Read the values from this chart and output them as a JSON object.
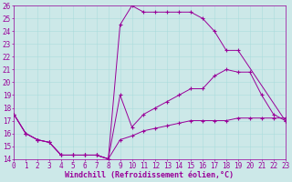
{
  "xlabel": "Windchill (Refroidissement éolien,°C)",
  "xlim": [
    0,
    23
  ],
  "ylim": [
    14,
    26
  ],
  "xticks": [
    0,
    1,
    2,
    3,
    4,
    5,
    6,
    7,
    8,
    9,
    10,
    11,
    12,
    13,
    14,
    15,
    16,
    17,
    18,
    19,
    20,
    21,
    22,
    23
  ],
  "yticks": [
    14,
    15,
    16,
    17,
    18,
    19,
    20,
    21,
    22,
    23,
    24,
    25,
    26
  ],
  "bg_color": "#cce8e8",
  "line_color": "#990099",
  "grid_color": "#aadddd",
  "curve1_x": [
    0,
    1,
    2,
    3,
    4,
    5,
    6,
    7,
    8,
    9,
    10,
    11,
    12,
    13,
    14,
    15,
    16,
    17,
    18,
    19,
    23
  ],
  "curve1_y": [
    17.5,
    16.0,
    15.5,
    15.3,
    14.3,
    14.3,
    14.3,
    14.3,
    14.0,
    24.5,
    26.0,
    25.5,
    25.5,
    25.5,
    25.5,
    25.5,
    25.0,
    24.0,
    22.5,
    22.5,
    17.0
  ],
  "curve2_x": [
    0,
    1,
    2,
    3,
    4,
    5,
    6,
    7,
    8,
    9,
    10,
    11,
    12,
    13,
    14,
    15,
    16,
    17,
    18,
    19,
    20,
    21,
    22,
    23
  ],
  "curve2_y": [
    17.5,
    16.0,
    15.5,
    15.3,
    14.3,
    14.3,
    14.3,
    14.3,
    14.0,
    19.0,
    16.5,
    17.5,
    18.0,
    18.5,
    19.0,
    19.5,
    19.5,
    20.5,
    21.0,
    20.8,
    20.8,
    19.0,
    17.5,
    17.0
  ],
  "curve3_x": [
    0,
    1,
    2,
    3,
    4,
    5,
    6,
    7,
    8,
    9,
    10,
    11,
    12,
    13,
    14,
    15,
    16,
    17,
    18,
    19,
    20,
    21,
    22,
    23
  ],
  "curve3_y": [
    17.5,
    16.0,
    15.5,
    15.3,
    14.3,
    14.3,
    14.3,
    14.3,
    14.0,
    15.5,
    15.8,
    16.2,
    16.4,
    16.6,
    16.8,
    17.0,
    17.0,
    17.0,
    17.0,
    17.2,
    17.2,
    17.2,
    17.2,
    17.2
  ],
  "font_size": 6,
  "tick_font_size": 5.5,
  "lw": 0.7,
  "ms": 3.0
}
